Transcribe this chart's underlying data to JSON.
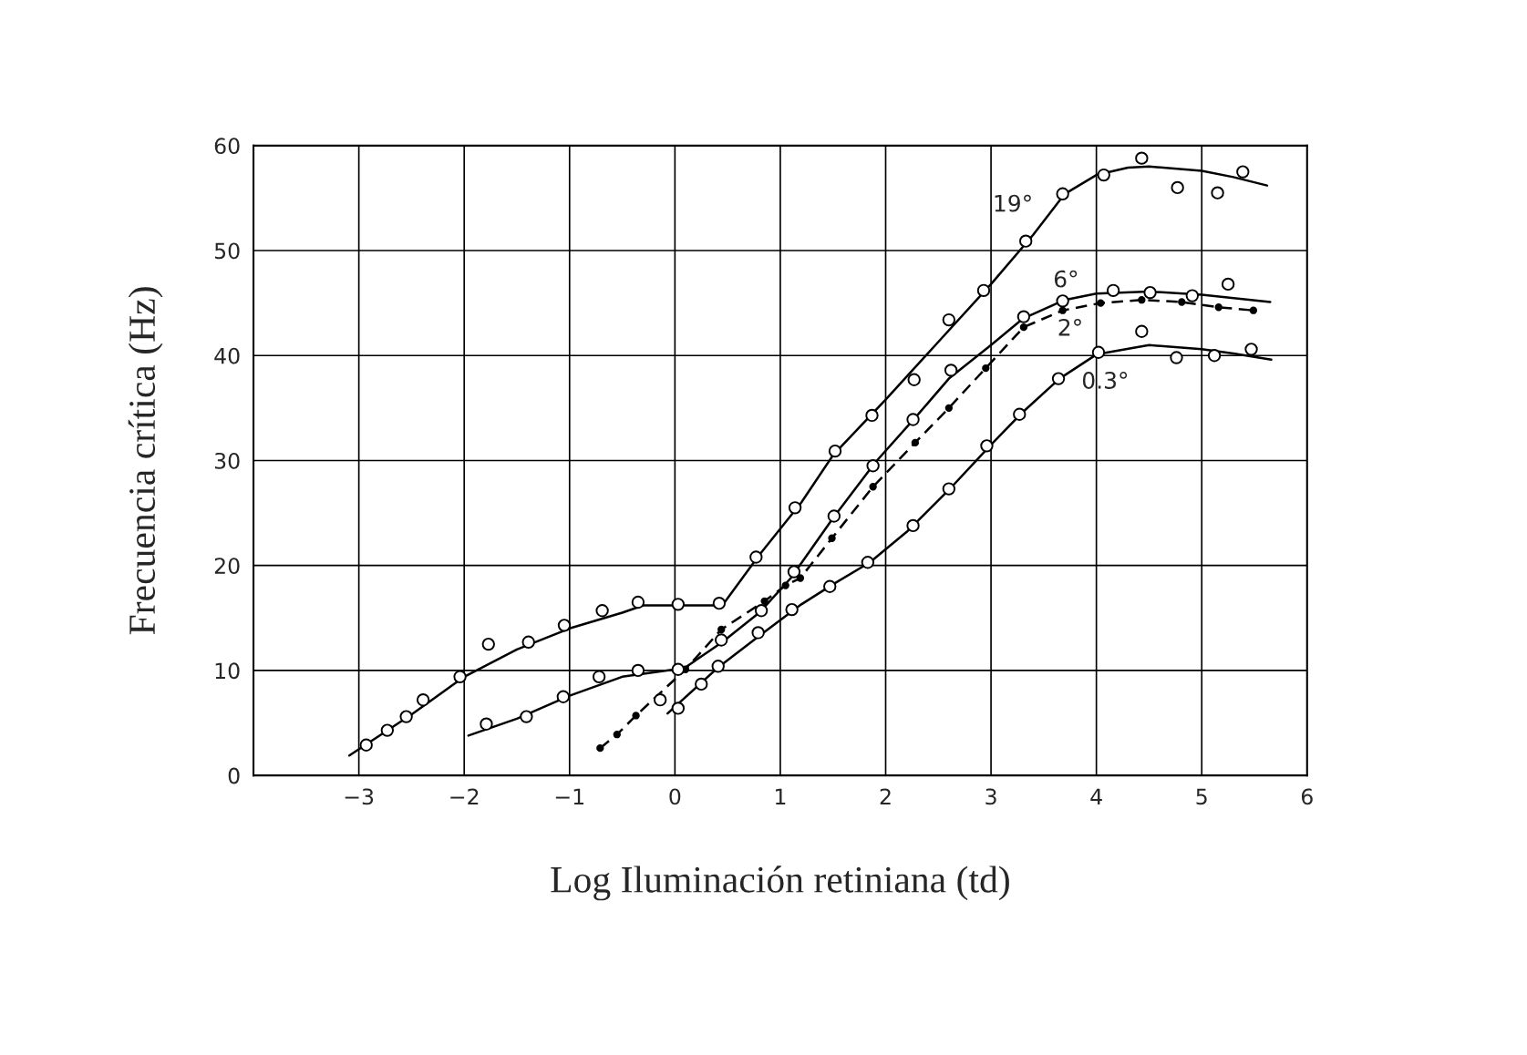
{
  "chart_data": {
    "type": "line",
    "xlabel": "Log Iluminación retiniana (td)",
    "ylabel": "Frecuencia crítica (Hz)",
    "xlim": [
      -4,
      6
    ],
    "ylim": [
      0,
      60
    ],
    "xticks": [
      {
        "value": -3,
        "label": "−3"
      },
      {
        "value": -2,
        "label": "−2"
      },
      {
        "value": -1,
        "label": "−1"
      },
      0,
      1,
      2,
      3,
      4,
      5,
      6
    ],
    "yticks": [
      0,
      10,
      20,
      30,
      40,
      50,
      60
    ],
    "grid": true,
    "annotations": [
      {
        "text": "19°",
        "x": 3.7,
        "y": 55.4
      },
      {
        "text": "6°",
        "x": 3.7,
        "y": 45.3
      },
      {
        "text": "2°",
        "x": 3.68,
        "y": 44.3
      },
      {
        "text": "0.3°",
        "x": 4,
        "y": 40.1
      }
    ],
    "series": [
      {
        "color": "#000000",
        "line_style": "solid",
        "marker": "none",
        "x": [
          -3.09,
          -2.5,
          -2,
          -1.5,
          -1,
          -0.5,
          -0.3,
          0.45,
          0.8,
          1.2,
          1.5,
          2,
          2.5,
          3,
          3.4,
          3.7,
          4,
          4.3,
          4.5,
          5,
          5.3,
          5.62
        ],
        "values": [
          1.9,
          5.8,
          9.4,
          12.0,
          14.0,
          15.5,
          16.2,
          16.2,
          21,
          26,
          30.5,
          35.8,
          41.3,
          46.8,
          51.5,
          55.4,
          57.2,
          57.9,
          58,
          57.6,
          57.0,
          56.2
        ]
      },
      {
        "type": "scatter",
        "color": "#000000",
        "marker": "circle",
        "x": [
          -2.93,
          -2.73,
          -2.55,
          -2.39,
          -2.04,
          -1.77,
          -1.39,
          -1.05,
          -0.69,
          -0.35,
          0.03,
          0.42,
          0.77,
          1.14,
          1.52,
          1.87,
          2.27,
          2.6,
          2.93,
          3.33,
          3.68,
          4.07,
          4.43,
          4.77,
          5.15,
          5.39
        ],
        "values": [
          2.9,
          4.3,
          5.6,
          7.2,
          9.4,
          12.5,
          12.7,
          14.3,
          15.7,
          16.5,
          16.3,
          16.4,
          20.8,
          25.5,
          30.9,
          34.3,
          37.7,
          43.4,
          46.2,
          50.9,
          55.4,
          57.2,
          58.8,
          56.0,
          55.5,
          57.5
        ]
      },
      {
        "color": "#000000",
        "line_style": "solid",
        "marker": "none",
        "x": [
          -1.96,
          -1.5,
          -1,
          -0.5,
          0,
          0.1,
          0.45,
          0.8,
          1.1,
          1.5,
          1.9,
          2.3,
          2.6,
          3,
          3.3,
          3.7,
          4,
          4.5,
          5,
          5.65
        ],
        "values": [
          3.8,
          5.4,
          7.6,
          9.4,
          10.1,
          10.3,
          12.7,
          15.5,
          18.8,
          24.5,
          29.8,
          34.3,
          37.8,
          41,
          43.5,
          45.3,
          45.9,
          46.1,
          45.8,
          45.1
        ]
      },
      {
        "type": "scatter",
        "color": "#000000",
        "marker": "circle",
        "x": [
          -1.79,
          -1.41,
          -1.06,
          -0.72,
          -0.35,
          0.03,
          0.44,
          0.82,
          1.13,
          1.51,
          1.88,
          2.26,
          2.62,
          3.31,
          3.68,
          4.16,
          4.51,
          4.91,
          5.25
        ],
        "values": [
          4.9,
          5.6,
          7.5,
          9.4,
          10.0,
          10.1,
          12.9,
          15.7,
          19.4,
          24.7,
          29.5,
          33.9,
          38.6,
          43.7,
          45.2,
          46.2,
          46.0,
          45.7,
          46.8
        ]
      },
      {
        "color": "#000000",
        "line_style": "dashed",
        "marker": "circle",
        "x": [
          -0.71,
          -0.55,
          -0.37,
          0.1,
          0.44,
          0.85,
          1.05,
          1.19,
          1.49,
          1.88,
          2.28,
          2.6,
          2.95,
          3.31,
          3.68,
          4.04,
          4.43,
          4.81,
          5.16,
          5.49
        ],
        "values": [
          2.6,
          3.9,
          5.7,
          10.1,
          13.9,
          16.6,
          18.1,
          18.8,
          22.6,
          27.5,
          31.7,
          35.0,
          38.8,
          42.7,
          44.3,
          45.0,
          45.3,
          45.1,
          44.6,
          44.3
        ]
      },
      {
        "color": "#000000",
        "line_style": "solid",
        "marker": "none",
        "x": [
          -0.07,
          0.4,
          0.8,
          1.2,
          1.5,
          1.85,
          2.2,
          2.6,
          3,
          3.3,
          3.65,
          4,
          4.5,
          5,
          5.3,
          5.66
        ],
        "values": [
          5.9,
          10.2,
          13.3,
          16.3,
          18.2,
          20.3,
          23.2,
          27.2,
          31.5,
          34.6,
          37.8,
          40.1,
          41.0,
          40.6,
          40.2,
          39.6
        ]
      },
      {
        "type": "scatter",
        "color": "#000000",
        "marker": "circle",
        "x": [
          -0.14,
          0.03,
          0.25,
          0.41,
          0.79,
          1.11,
          1.47,
          1.83,
          2.26,
          2.6,
          2.96,
          3.27,
          3.64,
          4.02,
          4.43,
          4.76,
          5.12,
          5.47
        ],
        "values": [
          7.2,
          6.4,
          8.7,
          10.4,
          13.6,
          15.8,
          18.0,
          20.3,
          23.8,
          27.3,
          31.4,
          34.4,
          37.8,
          40.3,
          42.3,
          39.8,
          40.0,
          40.6
        ]
      }
    ]
  }
}
